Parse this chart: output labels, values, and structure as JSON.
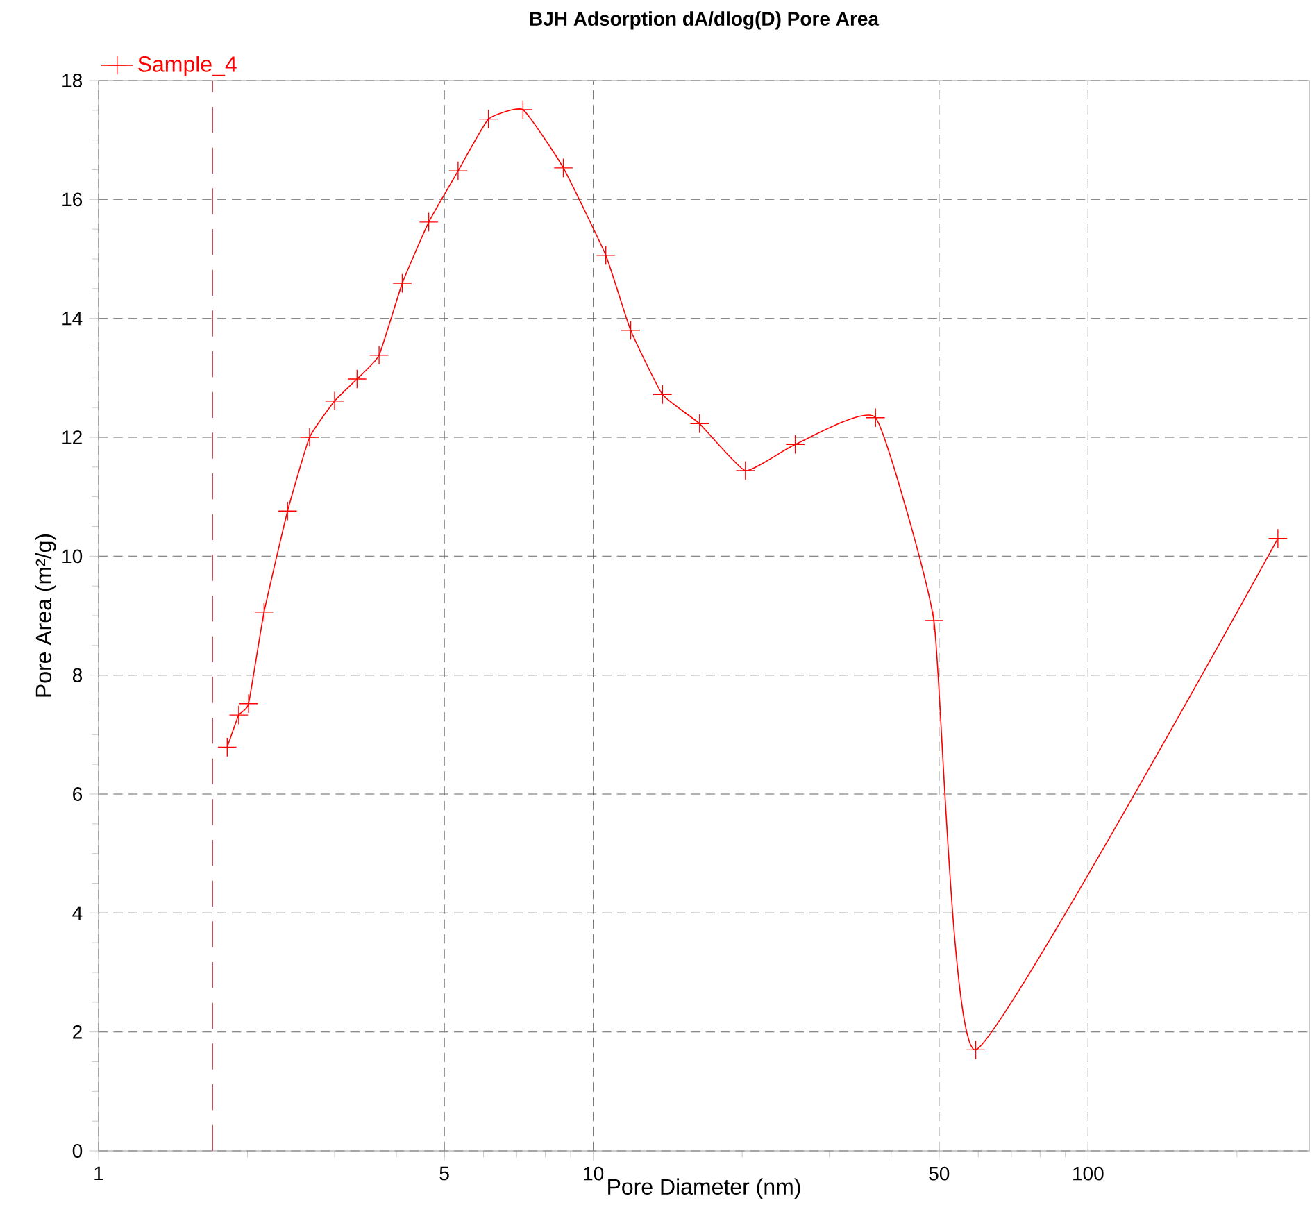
{
  "chart_data": {
    "type": "line",
    "title": "BJH Adsorption dA/dlog(D) Pore Area",
    "xlabel": "Pore Diameter (nm)",
    "ylabel": "Pore Area (m²/g)",
    "log": "x",
    "xlim": [
      1,
      280
    ],
    "xticks": [
      1,
      5,
      10,
      50,
      100
    ],
    "ylim": [
      0,
      18
    ],
    "yticks": [
      0,
      2,
      4,
      6,
      8,
      10,
      12,
      14,
      16,
      18
    ],
    "grid": true,
    "legend": "top left",
    "marker": "cross",
    "line_style": "solid",
    "ref_lines": [
      {
        "axis": "x",
        "value": 1.7,
        "color": "#c0505a",
        "line_style": "dashed"
      }
    ],
    "series": [
      {
        "name": "Sample_4",
        "color": "#ff0000",
        "x": [
          1.82,
          1.92,
          2.01,
          2.16,
          2.41,
          2.67,
          3.0,
          3.33,
          3.69,
          4.11,
          4.65,
          5.33,
          6.14,
          7.21,
          8.7,
          10.6,
          11.9,
          13.8,
          16.4,
          20.3,
          25.6,
          37.2,
          48.8,
          59.3,
          242
        ],
        "values": [
          6.79,
          7.33,
          7.52,
          9.06,
          10.76,
          12.0,
          12.61,
          12.98,
          13.38,
          14.59,
          15.62,
          16.48,
          17.35,
          17.51,
          16.53,
          15.06,
          13.8,
          12.72,
          12.23,
          11.44,
          11.88,
          12.33,
          8.92,
          1.7,
          10.3
        ]
      }
    ]
  }
}
